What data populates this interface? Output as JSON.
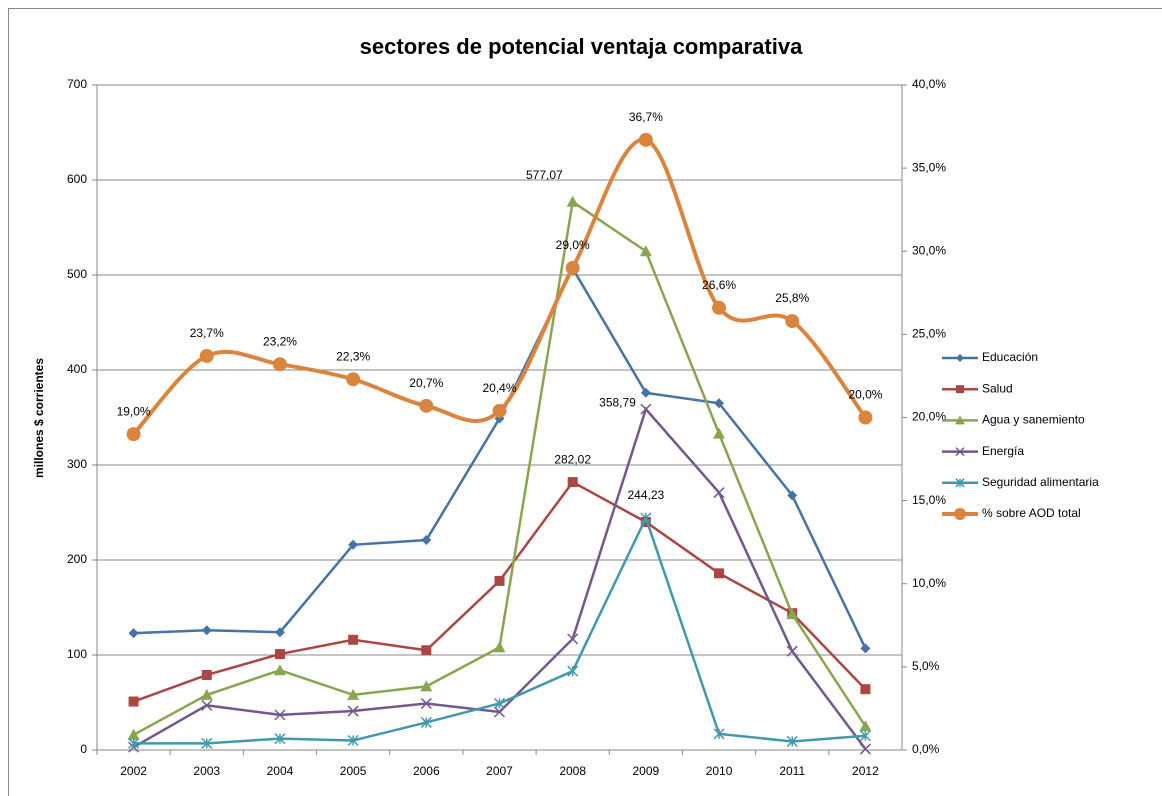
{
  "chart_data": {
    "type": "line",
    "title": "sectores de potencial ventaja comparativa",
    "y_label": "millones $ corrientes",
    "categories": [
      "2002",
      "2003",
      "2004",
      "2005",
      "2006",
      "2007",
      "2008",
      "2009",
      "2010",
      "2011",
      "2012"
    ],
    "ylim": [
      0,
      700
    ],
    "yticks": [
      0,
      100,
      200,
      300,
      400,
      500,
      600,
      700
    ],
    "y2lim": [
      0,
      40
    ],
    "y2ticks": [
      {
        "value": 0,
        "label": "0,0%"
      },
      {
        "value": 5,
        "label": "5,0%"
      },
      {
        "value": 10,
        "label": "10,0%"
      },
      {
        "value": 15,
        "label": "15,0%"
      },
      {
        "value": 20,
        "label": "20,0%"
      },
      {
        "value": 25,
        "label": "25,0%"
      },
      {
        "value": 30,
        "label": "30,0%"
      },
      {
        "value": 35,
        "label": "35,0%"
      },
      {
        "value": 40,
        "label": "40,0%"
      }
    ],
    "grid": true,
    "legend": "right",
    "series": [
      {
        "name": "Educación",
        "color": "#4572a7",
        "marker": "diamond",
        "values": [
          123,
          126,
          124,
          216,
          221,
          349,
          507,
          376,
          365,
          268,
          107
        ]
      },
      {
        "name": "Salud",
        "color": "#aa4643",
        "marker": "square",
        "values": [
          51,
          79,
          101,
          116,
          105,
          178,
          282.02,
          240,
          186,
          144,
          64
        ],
        "value_labels": [
          null,
          null,
          null,
          null,
          null,
          null,
          "282,02",
          null,
          null,
          null,
          null
        ]
      },
      {
        "name": "Agua y sanemiento",
        "color": "#89a54e",
        "marker": "triangle",
        "values": [
          16,
          58,
          84,
          58,
          67,
          108,
          577.07,
          525,
          333,
          143,
          25
        ],
        "value_labels": [
          null,
          null,
          null,
          null,
          null,
          null,
          "577,07",
          null,
          null,
          null,
          null
        ]
      },
      {
        "name": "Energía",
        "color": "#71588f",
        "marker": "x",
        "values": [
          3,
          47,
          37,
          41,
          49,
          40,
          117,
          358.79,
          271,
          104,
          1
        ],
        "value_labels": [
          null,
          null,
          null,
          null,
          null,
          null,
          null,
          "358,79",
          null,
          null,
          null
        ]
      },
      {
        "name": "Seguridad alimentaria",
        "color": "#4198af",
        "marker": "star",
        "values": [
          7,
          7,
          12,
          10,
          29,
          49,
          83,
          244.23,
          17,
          9,
          15
        ],
        "value_labels": [
          null,
          null,
          null,
          null,
          null,
          null,
          null,
          "244,23",
          null,
          null,
          null
        ]
      },
      {
        "name": "% sobre AOD total",
        "color": "#db843d",
        "marker": "circle",
        "axis": "y2",
        "smooth": true,
        "values": [
          19.0,
          23.7,
          23.2,
          22.3,
          20.7,
          20.4,
          29.0,
          36.7,
          26.6,
          25.8,
          20.0
        ],
        "value_labels": [
          "19,0%",
          "23,7%",
          "23,2%",
          "22,3%",
          "20,7%",
          "20,4%",
          "29,0%",
          "36,7%",
          "26,6%",
          "25,8%",
          "20,0%"
        ]
      }
    ]
  }
}
